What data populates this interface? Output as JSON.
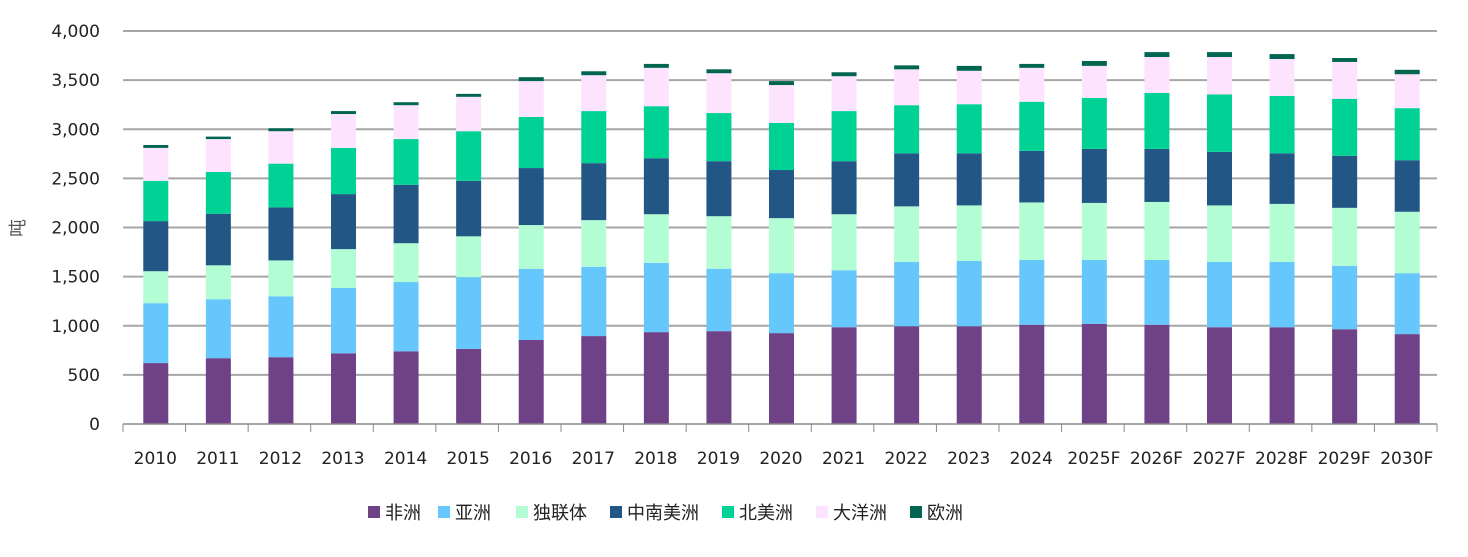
{
  "chart_data": {
    "type": "bar",
    "stacked": true,
    "title": "",
    "xlabel": "",
    "ylabel": "吨",
    "ylim": [
      0,
      4000
    ],
    "yticks": [
      0,
      500,
      1000,
      1500,
      2000,
      2500,
      3000,
      3500,
      4000
    ],
    "ytick_labels": [
      "0",
      "500",
      "1,000",
      "1,500",
      "2,000",
      "2,500",
      "3,000",
      "3,500",
      "4,000"
    ],
    "grid": true,
    "legend_position": "bottom",
    "categories": [
      "2010",
      "2011",
      "2012",
      "2013",
      "2014",
      "2015",
      "2016",
      "2017",
      "2018",
      "2019",
      "2020",
      "2021",
      "2022",
      "2023",
      "2024",
      "2025F",
      "2026F",
      "2027F",
      "2028F",
      "2029F",
      "2030F"
    ],
    "series": [
      {
        "name": "非洲",
        "color": "#6f4288",
        "values": [
          620,
          670,
          680,
          720,
          740,
          765,
          855,
          895,
          935,
          945,
          925,
          985,
          995,
          995,
          1010,
          1020,
          1010,
          985,
          985,
          965,
          915
        ]
      },
      {
        "name": "亚洲",
        "color": "#66c7fd",
        "values": [
          610,
          600,
          620,
          665,
          705,
          730,
          725,
          705,
          705,
          635,
          610,
          580,
          655,
          665,
          660,
          650,
          660,
          665,
          665,
          645,
          620
        ]
      },
      {
        "name": "独联体",
        "color": "#b2fdd4",
        "values": [
          325,
          345,
          365,
          395,
          395,
          415,
          445,
          475,
          495,
          535,
          560,
          570,
          565,
          565,
          585,
          580,
          590,
          575,
          590,
          590,
          625
        ]
      },
      {
        "name": "中南美洲",
        "color": "#225785",
        "values": [
          510,
          525,
          540,
          560,
          595,
          565,
          580,
          580,
          570,
          560,
          490,
          540,
          540,
          530,
          525,
          550,
          540,
          545,
          515,
          530,
          525
        ]
      },
      {
        "name": "北美洲",
        "color": "#00d295",
        "values": [
          410,
          425,
          445,
          470,
          465,
          505,
          520,
          530,
          530,
          490,
          480,
          510,
          490,
          500,
          500,
          520,
          570,
          585,
          585,
          580,
          530
        ]
      },
      {
        "name": "大洋洲",
        "color": "#fde3fd",
        "values": [
          335,
          335,
          330,
          345,
          345,
          350,
          365,
          365,
          390,
          405,
          385,
          355,
          365,
          340,
          345,
          325,
          365,
          380,
          375,
          375,
          345
        ]
      },
      {
        "name": "欧洲",
        "color": "#00664f",
        "values": [
          30,
          25,
          30,
          30,
          30,
          30,
          40,
          40,
          40,
          40,
          40,
          40,
          40,
          50,
          40,
          50,
          50,
          50,
          50,
          40,
          45
        ]
      }
    ]
  }
}
